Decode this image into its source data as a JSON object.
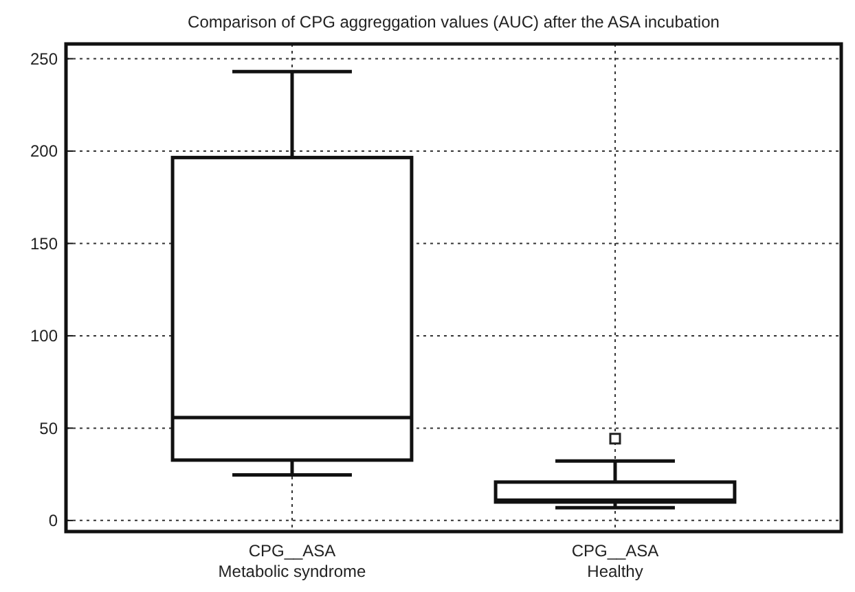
{
  "chart_data": {
    "type": "box",
    "title": "Comparison of CPG aggreggation values (AUC)  after the ASA incubation",
    "categories": [
      "CPG__ASA\nMetabolic syndrome",
      "CPG__ASA\nHealthy"
    ],
    "boxes": [
      {
        "low": 24.7,
        "q1": 32.7,
        "median": 55.7,
        "q3": 196.5,
        "high": 243
      },
      {
        "low": 6.9,
        "q1": 10,
        "median": 11,
        "q3": 20.8,
        "high": 32.2,
        "outliers": [
          44.3
        ]
      }
    ],
    "ylim": [
      -6,
      258
    ],
    "yticks": [
      0,
      50,
      100,
      150,
      200,
      250
    ],
    "grid": true,
    "marker": "square"
  }
}
